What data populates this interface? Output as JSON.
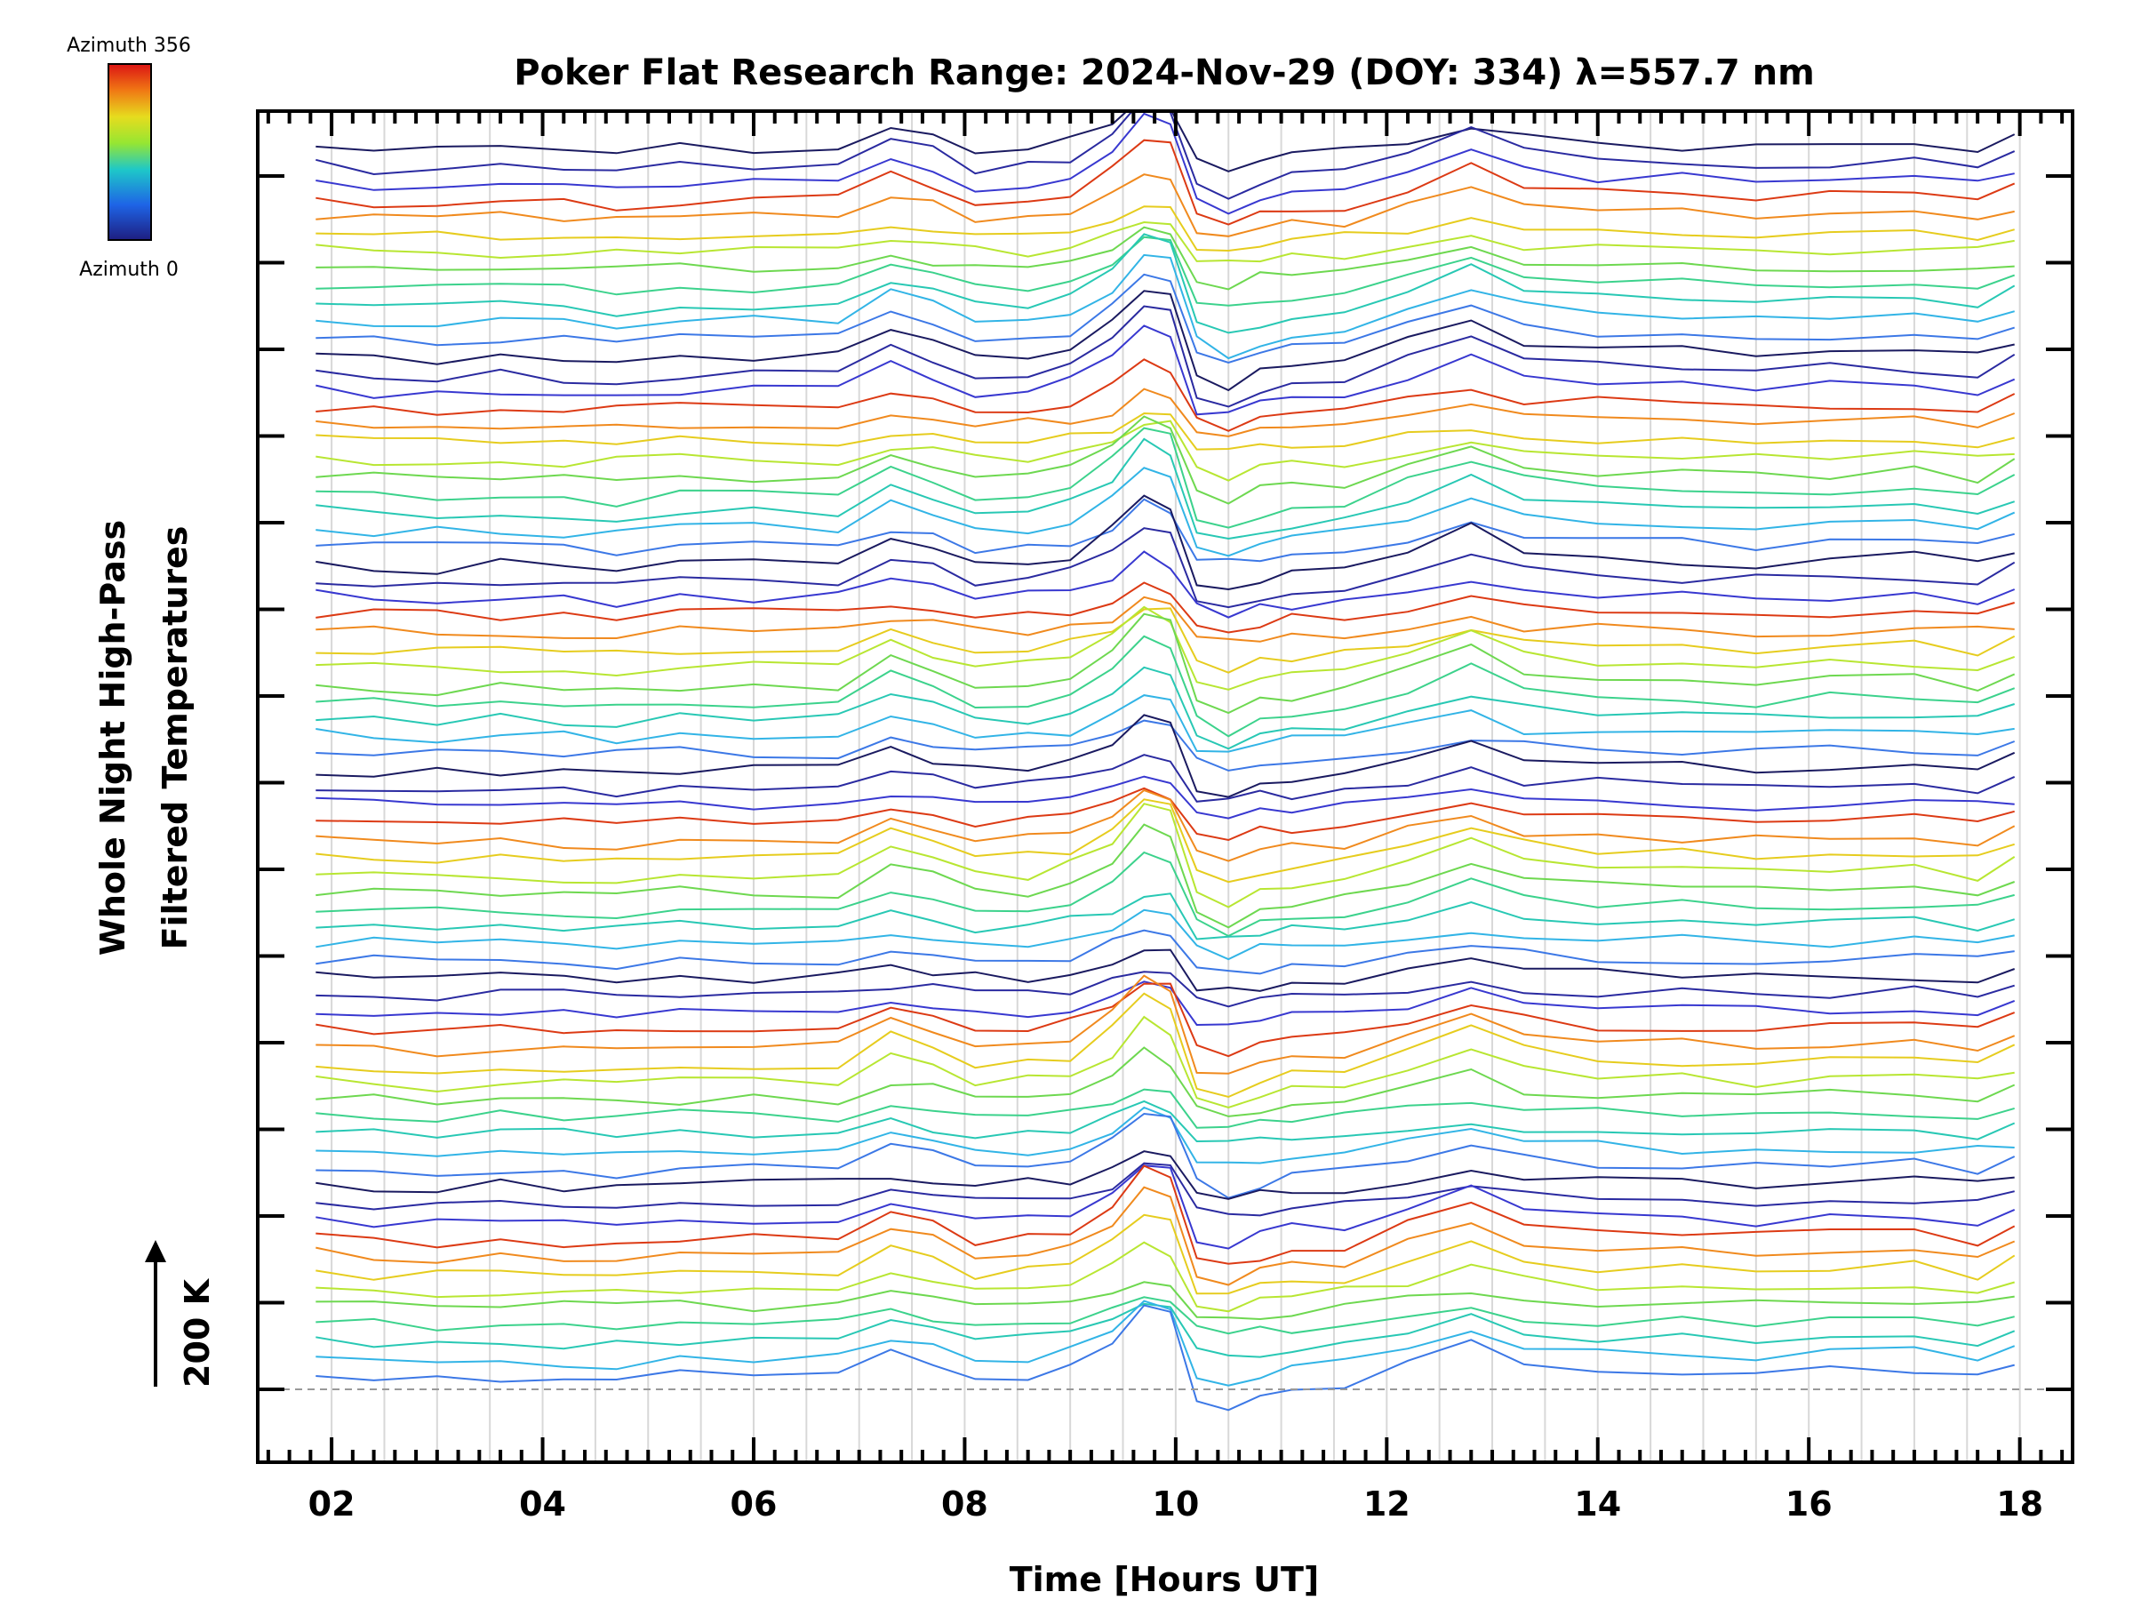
{
  "chart_data": {
    "type": "line",
    "title": "Poker Flat Research Range: 2024-Nov-29 (DOY: 334) λ=557.7 nm",
    "xlabel": "Time [Hours UT]",
    "ylabel_line1": "Whole Night High-Pass",
    "ylabel_line2": "Filtered Temperatures",
    "scale_label": "200 K",
    "xlim": [
      1.3,
      18.5
    ],
    "x_tick_labels": [
      "02",
      "04",
      "06",
      "08",
      "10",
      "12",
      "14",
      "16",
      "18"
    ],
    "x_ticks": [
      2,
      4,
      6,
      8,
      10,
      12,
      14,
      16,
      18
    ],
    "y_stack_ticks": 15,
    "grid": true,
    "colorbar": {
      "top_label": "Azimuth 356",
      "bottom_label": "Azimuth 0",
      "colors": [
        "#dc1414",
        "#f07814",
        "#e6dc1e",
        "#96e632",
        "#3cd278",
        "#1ec8c8",
        "#1e64e6",
        "#1e1e96",
        "#1e1e50"
      ]
    },
    "series_groups": 6,
    "lines_per_group": 12,
    "x": [
      1.85,
      2.4,
      3.0,
      3.6,
      4.2,
      4.7,
      5.3,
      6.0,
      6.8,
      7.3,
      7.7,
      8.1,
      8.6,
      9.0,
      9.4,
      9.7,
      9.95,
      10.2,
      10.5,
      10.8,
      11.1,
      11.6,
      12.2,
      12.8,
      13.3,
      14.0,
      14.8,
      15.5,
      16.2,
      17.0,
      17.6,
      17.95
    ],
    "base_profile": [
      0,
      -4,
      -6,
      -3,
      -5,
      -8,
      -2,
      -2,
      -2,
      22,
      12,
      -4,
      -1,
      6,
      28,
      60,
      50,
      -20,
      -30,
      -18,
      -12,
      -8,
      10,
      30,
      10,
      4,
      2,
      -2,
      2,
      4,
      -4,
      12
    ]
  }
}
